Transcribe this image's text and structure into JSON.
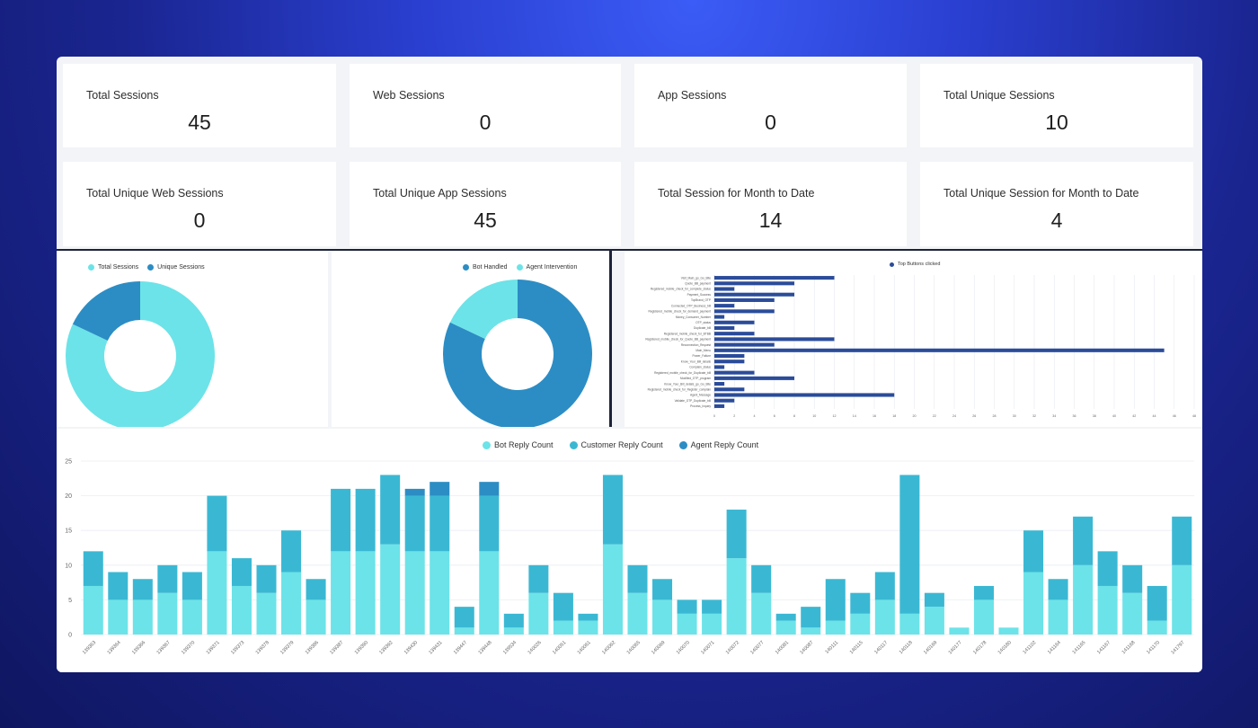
{
  "stats": [
    {
      "label": "Total Sessions",
      "value": "45"
    },
    {
      "label": "Web Sessions",
      "value": "0"
    },
    {
      "label": "App Sessions",
      "value": "0"
    },
    {
      "label": "Total Unique Sessions",
      "value": "10"
    },
    {
      "label": "Total Unique Web Sessions",
      "value": "0"
    },
    {
      "label": "Total Unique App Sessions",
      "value": "45"
    },
    {
      "label": "Total Session for Month to Date",
      "value": "14"
    },
    {
      "label": "Total Unique Session for Month to Date",
      "value": "4"
    }
  ],
  "colors": {
    "light_cyan": "#6ce3e8",
    "mid_cyan": "#3ab8d3",
    "dark_blue": "#2c8dc4",
    "navy": "#2b4c9a"
  },
  "chart_data": [
    {
      "type": "pie",
      "donut": true,
      "legend": [
        "Total Sessions",
        "Unique Sessions"
      ],
      "values": [
        82,
        18
      ],
      "colors": [
        "#6ce3e8",
        "#2c8dc4"
      ]
    },
    {
      "type": "pie",
      "donut": true,
      "legend": [
        "Bot Handled",
        "Agent Intervention"
      ],
      "values": [
        82,
        18
      ],
      "colors": [
        "#2c8dc4",
        "#6ce3e8"
      ]
    },
    {
      "type": "bar",
      "orientation": "horizontal",
      "legend": [
        "Top Buttons clicked"
      ],
      "categories": [
        "Visit_Main_go_Go_Bite",
        "Quote_BB_payment",
        "Registered_mobile_check_for_complete_status",
        "Payment_Success",
        "TopBrand_OTP",
        "Connected_OTP_Business_bill",
        "Registered_mobile_check_for_demand_payment",
        "Money_Consumer_Number",
        "OTP_status",
        "Duplicate_bill",
        "Registered_mobile_check_for_BTBB",
        "Registered_mobile_check_for_Quote_BB_payment",
        "Reconnection_Request",
        "Main_Menu",
        "Power_Failure",
        "Know_Your_Bill_details",
        "Complain_status",
        "Registered_mobile_check_for_Duplicate_bill",
        "Modified_OTP_program",
        "Know_Your_Bill_details_go_Go_Bite",
        "Registered_mobile_check_for_Register_complain",
        "Agent_Message",
        "Validate_OTP_Duplicate_bill",
        "Process_Inquiry"
      ],
      "values": [
        12,
        8,
        2,
        8,
        6,
        2,
        6,
        1,
        4,
        2,
        4,
        12,
        6,
        45,
        3,
        3,
        1,
        4,
        8,
        1,
        3,
        18,
        2,
        1
      ],
      "xlim": [
        0,
        48
      ],
      "xticks": [
        0,
        2,
        4,
        6,
        8,
        10,
        12,
        14,
        16,
        18,
        20,
        22,
        24,
        26,
        28,
        30,
        32,
        34,
        36,
        38,
        40,
        42,
        44,
        46,
        48
      ]
    },
    {
      "type": "bar",
      "stacked": true,
      "categories": [
        "139363",
        "139364",
        "139366",
        "139367",
        "139370",
        "139371",
        "139373",
        "139378",
        "139379",
        "139386",
        "139387",
        "139390",
        "139392",
        "139430",
        "139431",
        "139447",
        "139448",
        "139534",
        "140026",
        "140051",
        "140061",
        "140062",
        "140065",
        "140069",
        "140070",
        "140071",
        "140072",
        "140077",
        "140081",
        "140087",
        "140111",
        "140115",
        "140117",
        "140118",
        "140169",
        "140177",
        "140178",
        "140180",
        "141102",
        "141164",
        "141165",
        "141167",
        "141168",
        "141170",
        "141797"
      ],
      "series": [
        {
          "name": "Bot Reply Count",
          "values": [
            7,
            5,
            5,
            6,
            5,
            12,
            7,
            6,
            9,
            5,
            12,
            12,
            13,
            12,
            12,
            1,
            12,
            1,
            6,
            2,
            2,
            13,
            6,
            5,
            3,
            3,
            11,
            6,
            2,
            1,
            2,
            3,
            5,
            3,
            4,
            1,
            5,
            1,
            9,
            5,
            10,
            7,
            6,
            2,
            10
          ]
        },
        {
          "name": "Customer Reply Count",
          "values": [
            5,
            4,
            3,
            4,
            4,
            8,
            4,
            4,
            6,
            3,
            9,
            9,
            10,
            8,
            8,
            3,
            8,
            2,
            4,
            4,
            1,
            10,
            4,
            3,
            2,
            2,
            7,
            4,
            1,
            3,
            6,
            3,
            4,
            20,
            2,
            0,
            2,
            0,
            6,
            3,
            7,
            5,
            4,
            5,
            7
          ]
        },
        {
          "name": "Agent Reply Count",
          "values": [
            0,
            0,
            0,
            0,
            0,
            0,
            0,
            0,
            0,
            0,
            0,
            0,
            0,
            1,
            2,
            0,
            2,
            0,
            0,
            0,
            0,
            0,
            0,
            0,
            0,
            0,
            0,
            0,
            0,
            0,
            0,
            0,
            0,
            0,
            0,
            0,
            0,
            0,
            0,
            0,
            0,
            0,
            0,
            0,
            0
          ]
        }
      ],
      "ylim": [
        0,
        25
      ],
      "yticks": [
        0,
        5,
        10,
        15,
        20,
        25
      ]
    }
  ]
}
